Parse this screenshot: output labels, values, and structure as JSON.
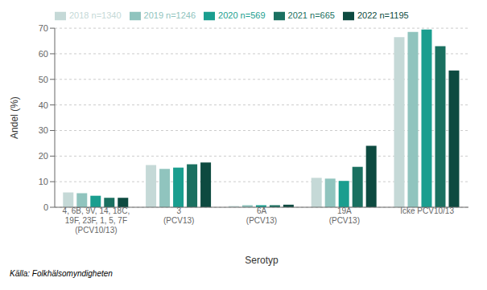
{
  "chart_data": {
    "type": "bar",
    "xlabel": "Serotyp",
    "ylabel": "Andel (%)",
    "annotations": [
      "Källa: Folkhälsomyndigheten"
    ],
    "categories": [
      "4, 6B, 9V, 14, 18C,\n19F, 23F, 1, 5, 7F\n(PCV10/13)",
      "3\n(PCV13)",
      "6A\n(PCV13)",
      "19A\n(PCV13)",
      "Icke PCV10/13"
    ],
    "series": [
      {
        "name": "2018 n=1340",
        "color": "#c5d9d7",
        "values": [
          5.8,
          16.5,
          0.5,
          11.5,
          66.5
        ]
      },
      {
        "name": "2019 n=1246",
        "color": "#90c4be",
        "values": [
          5.5,
          15.0,
          0.8,
          11.2,
          68.5
        ]
      },
      {
        "name": "2020 n=569",
        "color": "#1a9e8f",
        "values": [
          4.5,
          15.5,
          0.8,
          10.3,
          69.5
        ]
      },
      {
        "name": "2021 n=665",
        "color": "#1a7060",
        "values": [
          3.7,
          16.8,
          0.8,
          15.8,
          63.0
        ]
      },
      {
        "name": "2022 n=1195",
        "color": "#0d4a40",
        "values": [
          3.7,
          17.5,
          1.0,
          24.0,
          53.5
        ]
      }
    ],
    "ylim": [
      0,
      70
    ],
    "yticks": [
      0,
      10,
      20,
      30,
      40,
      50,
      60,
      70
    ],
    "grid": true,
    "legend": "upper left"
  }
}
